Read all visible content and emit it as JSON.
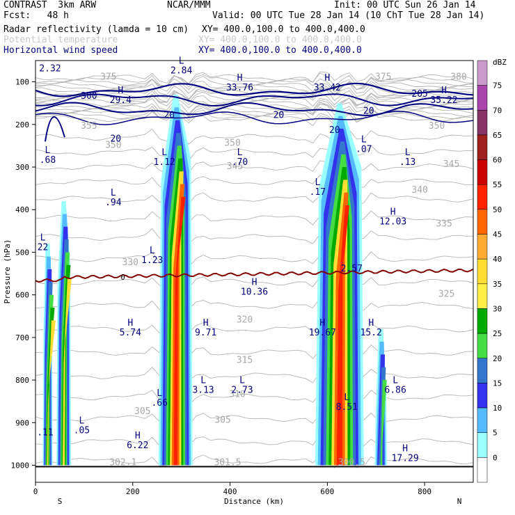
{
  "header": {
    "title_left": "CONTRAST  3km ARW",
    "forecast": "Fcst:   48 h",
    "center": "NCAR/MMM",
    "init": "Init: 00 UTC Sun 26 Jan 14",
    "valid": "Valid: 00 UTC Tue 28 Jan 14 (10 ChT Tue 28 Jan 14)",
    "fields": [
      {
        "name": "Radar reflectivity (lamda = 10 cm)",
        "xy": "XY= 400.0,100.0 to 400.0,400.0",
        "color": "#000000"
      },
      {
        "name": "Potential temperature",
        "xy": "XY= 400.0,100.0 to 400.0,400.0",
        "color": "#c8c8c8"
      },
      {
        "name": "Horizontal wind speed",
        "xy": "XY= 400.0,100.0 to 400.0,400.0",
        "color": "#000080"
      }
    ]
  },
  "chart_data": {
    "type": "cross-section",
    "xlabel": "Distance (km)",
    "ylabel": "Pressure (hPa)",
    "xlim": [
      0,
      900
    ],
    "ylim": [
      1040,
      50
    ],
    "x_ticks": [
      0,
      200,
      400,
      600,
      800
    ],
    "y_ticks": [
      100,
      200,
      300,
      400,
      500,
      600,
      700,
      800,
      900,
      1000
    ],
    "x_end_labels": {
      "left": "S",
      "right": "N"
    },
    "colorbar": {
      "unit": "dBZ",
      "levels": [
        75,
        70,
        65,
        60,
        55,
        50,
        45,
        40,
        35,
        30,
        25,
        20,
        15,
        10,
        5,
        0
      ],
      "colors": [
        "#cc99cc",
        "#aa44aa",
        "#883366",
        "#a02020",
        "#cc0000",
        "#ff2200",
        "#ff6600",
        "#ffaa33",
        "#ffdd33",
        "#ffee44",
        "#00aa00",
        "#44dd44",
        "#3377cc",
        "#3333ee",
        "#55bbff",
        "#99ffff",
        "#ffffff"
      ]
    },
    "storm_cells": [
      {
        "x": 25,
        "top_hpa": 480,
        "width_km": 20,
        "peak": 40
      },
      {
        "x": 58,
        "top_hpa": 380,
        "width_km": 30,
        "peak": 40
      },
      {
        "x": 288,
        "top_hpa": 130,
        "width_km": 70,
        "peak": 50
      },
      {
        "x": 625,
        "top_hpa": 150,
        "width_km": 100,
        "peak": 50
      },
      {
        "x": 710,
        "top_hpa": 680,
        "width_km": 25,
        "peak": 25
      }
    ],
    "freezing_level": {
      "label": "0",
      "hpa": 560
    },
    "wind_labels": [
      {
        "type": "",
        "value": "2.32",
        "x": 30,
        "hpa": 75
      },
      {
        "type": "L",
        "value": "2.84",
        "x": 300,
        "hpa": 80
      },
      {
        "type": "H",
        "value": "33.76",
        "x": 420,
        "hpa": 120
      },
      {
        "type": "H",
        "value": "33.42",
        "x": 600,
        "hpa": 120
      },
      {
        "type": "H",
        "value": "29.4",
        "x": 175,
        "hpa": 150
      },
      {
        "type": "H",
        "value": "35.22",
        "x": 840,
        "hpa": 150
      },
      {
        "type": "L",
        "value": ".68",
        "x": 25,
        "hpa": 290
      },
      {
        "type": "L",
        "value": "1.12",
        "x": 265,
        "hpa": 295
      },
      {
        "type": "L",
        "value": ".70",
        "x": 420,
        "hpa": 295
      },
      {
        "type": "L",
        "value": ".07",
        "x": 675,
        "hpa": 265
      },
      {
        "type": "L",
        "value": ".13",
        "x": 765,
        "hpa": 295
      },
      {
        "type": "L",
        "value": ".94",
        "x": 160,
        "hpa": 390
      },
      {
        "type": "L",
        "value": ".17",
        "x": 580,
        "hpa": 365
      },
      {
        "type": "H",
        "value": "12.03",
        "x": 735,
        "hpa": 435
      },
      {
        "type": "L",
        "value": "22",
        "x": 15,
        "hpa": 495
      },
      {
        "type": "L",
        "value": "1.23",
        "x": 240,
        "hpa": 525
      },
      {
        "type": "H",
        "value": "10.36",
        "x": 450,
        "hpa": 600
      },
      {
        "type": "",
        "value": "2.57",
        "x": 650,
        "hpa": 545
      },
      {
        "type": "H",
        "value": "5.74",
        "x": 195,
        "hpa": 695
      },
      {
        "type": "H",
        "value": "9.71",
        "x": 350,
        "hpa": 695
      },
      {
        "type": "H",
        "value": "19.67",
        "x": 590,
        "hpa": 695
      },
      {
        "type": "H",
        "value": "15.2",
        "x": 690,
        "hpa": 695
      },
      {
        "type": "L",
        "value": ".66",
        "x": 255,
        "hpa": 860
      },
      {
        "type": "L",
        "value": "3.13",
        "x": 345,
        "hpa": 830
      },
      {
        "type": "L",
        "value": "2.73",
        "x": 425,
        "hpa": 830
      },
      {
        "type": "L",
        "value": "6.86",
        "x": 740,
        "hpa": 830
      },
      {
        "type": "L",
        "value": "8.51",
        "x": 640,
        "hpa": 870
      },
      {
        "type": "",
        "value": ".11",
        "x": 20,
        "hpa": 930
      },
      {
        "type": "L",
        "value": ".05",
        "x": 95,
        "hpa": 925
      },
      {
        "type": "H",
        "value": "6.22",
        "x": 210,
        "hpa": 960
      },
      {
        "type": "H",
        "value": "17.29",
        "x": 760,
        "hpa": 990
      }
    ],
    "wind_contour_labels": [
      {
        "value": "300",
        "x": 110,
        "hpa": 140
      },
      {
        "value": "20",
        "x": 275,
        "hpa": 185
      },
      {
        "value": "20",
        "x": 500,
        "hpa": 185
      },
      {
        "value": "20",
        "x": 685,
        "hpa": 175
      },
      {
        "value": "20",
        "x": 165,
        "hpa": 240
      },
      {
        "value": "205",
        "x": 790,
        "hpa": 135
      },
      {
        "value": "20",
        "x": 615,
        "hpa": 220
      }
    ],
    "theta_labels": [
      {
        "value": "375",
        "x": 150,
        "hpa": 95
      },
      {
        "value": "375",
        "x": 715,
        "hpa": 95
      },
      {
        "value": "380",
        "x": 870,
        "hpa": 95
      },
      {
        "value": "355",
        "x": 110,
        "hpa": 210
      },
      {
        "value": "350",
        "x": 160,
        "hpa": 255
      },
      {
        "value": "350",
        "x": 405,
        "hpa": 250
      },
      {
        "value": "350",
        "x": 825,
        "hpa": 210
      },
      {
        "value": "345",
        "x": 410,
        "hpa": 305
      },
      {
        "value": "345",
        "x": 855,
        "hpa": 300
      },
      {
        "value": "340",
        "x": 790,
        "hpa": 360
      },
      {
        "value": "335",
        "x": 840,
        "hpa": 440
      },
      {
        "value": "330",
        "x": 195,
        "hpa": 530
      },
      {
        "value": "325",
        "x": 845,
        "hpa": 605
      },
      {
        "value": "320",
        "x": 430,
        "hpa": 665
      },
      {
        "value": "315",
        "x": 430,
        "hpa": 760
      },
      {
        "value": "310",
        "x": 415,
        "hpa": 840
      },
      {
        "value": "305",
        "x": 220,
        "hpa": 880
      },
      {
        "value": "305",
        "x": 385,
        "hpa": 900
      },
      {
        "value": "302.1",
        "x": 180,
        "hpa": 1000
      },
      {
        "value": "301.5",
        "x": 395,
        "hpa": 1000
      },
      {
        "value": "300.5",
        "x": 650,
        "hpa": 1000
      }
    ]
  }
}
